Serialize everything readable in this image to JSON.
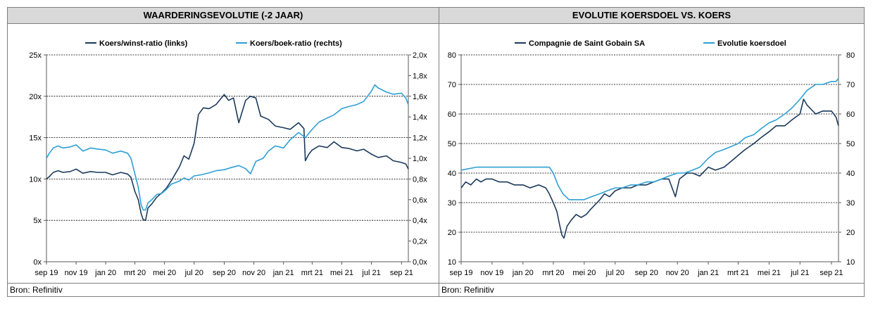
{
  "colors": {
    "dark": "#1b3a5c",
    "light": "#2e9fd6",
    "grid": "#000000",
    "header_bg": "#d9d9d9"
  },
  "panels": [
    {
      "title": "WAARDERINGSEVOLUTIE (-2 JAAR)",
      "source": "Bron: Refinitiv"
    },
    {
      "title": "EVOLUTIE KOERSDOEL VS. KOERS",
      "source": "Bron: Refinitiv"
    }
  ],
  "chart_data": [
    {
      "type": "line",
      "x_labels": [
        "sep 19",
        "nov 19",
        "jan 20",
        "mrt 20",
        "mei 20",
        "jul 20",
        "sep 20",
        "nov 20",
        "jan 21",
        "mrt 21",
        "mei 21",
        "jul 21",
        "sep 21"
      ],
      "y_left": {
        "ticks": [
          "0x",
          "5x",
          "10x",
          "15x",
          "20x",
          "25x"
        ],
        "lim": [
          0,
          25
        ],
        "gridlines": [
          5,
          10,
          15,
          20,
          25
        ]
      },
      "y_right": {
        "ticks": [
          "0,0x",
          "0,2x",
          "0,4x",
          "0,6x",
          "0,8x",
          "1,0x",
          "1,2x",
          "1,4x",
          "1,6x",
          "1,8x",
          "2,0x"
        ],
        "lim": [
          0,
          2
        ]
      },
      "legend_position": "top",
      "series": [
        {
          "name": "Koers/winst-ratio (links)",
          "axis": "left",
          "color": "dark",
          "x": [
            "2019-09-01",
            "2019-09-07",
            "2019-09-15",
            "2019-09-25",
            "2019-10-05",
            "2019-10-20",
            "2019-11-01",
            "2019-11-15",
            "2019-12-01",
            "2019-12-15",
            "2020-01-01",
            "2020-01-15",
            "2020-02-01",
            "2020-02-15",
            "2020-02-22",
            "2020-03-01",
            "2020-03-08",
            "2020-03-14",
            "2020-03-18",
            "2020-03-23",
            "2020-03-28",
            "2020-04-05",
            "2020-04-15",
            "2020-04-25",
            "2020-05-05",
            "2020-05-15",
            "2020-06-01",
            "2020-06-10",
            "2020-06-20",
            "2020-07-01",
            "2020-07-10",
            "2020-07-20",
            "2020-08-01",
            "2020-08-15",
            "2020-09-01",
            "2020-09-10",
            "2020-09-20",
            "2020-10-01",
            "2020-10-15",
            "2020-10-25",
            "2020-11-05",
            "2020-11-15",
            "2020-12-01",
            "2020-12-15",
            "2021-01-01",
            "2021-01-15",
            "2021-02-01",
            "2021-02-12",
            "2021-02-15",
            "2021-02-22",
            "2021-03-01",
            "2021-03-15",
            "2021-04-01",
            "2021-04-15",
            "2021-05-01",
            "2021-05-15",
            "2021-06-01",
            "2021-06-15",
            "2021-07-01",
            "2021-07-15",
            "2021-08-01",
            "2021-08-15",
            "2021-09-01",
            "2021-09-10",
            "2021-09-15"
          ],
          "y": [
            10.0,
            10.3,
            10.8,
            11.0,
            10.8,
            10.9,
            11.2,
            10.7,
            10.9,
            10.8,
            10.8,
            10.5,
            10.8,
            10.6,
            10.2,
            8.5,
            7.5,
            5.8,
            5.1,
            5.0,
            6.5,
            7.0,
            7.8,
            8.3,
            8.9,
            9.8,
            11.5,
            12.8,
            12.4,
            14.3,
            17.8,
            18.6,
            18.5,
            19.0,
            20.2,
            19.5,
            19.8,
            16.8,
            19.5,
            20.0,
            19.8,
            17.6,
            17.2,
            16.4,
            16.2,
            16.0,
            16.8,
            16.1,
            12.2,
            13.0,
            13.5,
            14.0,
            13.8,
            14.5,
            13.8,
            13.7,
            13.4,
            13.6,
            13.0,
            12.6,
            12.8,
            12.2,
            12.0,
            11.8,
            11.2
          ]
        },
        {
          "name": "Koers/boek-ratio (rechts)",
          "axis": "right",
          "color": "light",
          "x": [
            "2019-09-01",
            "2019-09-07",
            "2019-09-15",
            "2019-09-25",
            "2019-10-05",
            "2019-10-20",
            "2019-11-01",
            "2019-11-15",
            "2019-12-01",
            "2019-12-15",
            "2020-01-01",
            "2020-01-15",
            "2020-02-01",
            "2020-02-15",
            "2020-02-22",
            "2020-03-01",
            "2020-03-08",
            "2020-03-14",
            "2020-03-18",
            "2020-03-23",
            "2020-03-28",
            "2020-04-05",
            "2020-04-15",
            "2020-04-25",
            "2020-05-05",
            "2020-05-15",
            "2020-06-01",
            "2020-06-10",
            "2020-06-20",
            "2020-07-01",
            "2020-07-15",
            "2020-08-01",
            "2020-08-15",
            "2020-09-01",
            "2020-09-15",
            "2020-10-01",
            "2020-10-15",
            "2020-10-25",
            "2020-11-05",
            "2020-11-20",
            "2020-12-01",
            "2020-12-15",
            "2021-01-01",
            "2021-01-15",
            "2021-02-01",
            "2021-02-15",
            "2021-03-01",
            "2021-03-15",
            "2021-04-01",
            "2021-04-15",
            "2021-05-01",
            "2021-05-15",
            "2021-06-01",
            "2021-06-15",
            "2021-07-01",
            "2021-07-08",
            "2021-07-15",
            "2021-08-01",
            "2021-08-15",
            "2021-09-01",
            "2021-09-10",
            "2021-09-15"
          ],
          "y": [
            1.0,
            1.05,
            1.1,
            1.12,
            1.1,
            1.11,
            1.13,
            1.07,
            1.1,
            1.09,
            1.08,
            1.05,
            1.07,
            1.05,
            1.0,
            0.85,
            0.72,
            0.55,
            0.5,
            0.5,
            0.57,
            0.6,
            0.65,
            0.66,
            0.7,
            0.75,
            0.78,
            0.81,
            0.79,
            0.83,
            0.84,
            0.86,
            0.88,
            0.89,
            0.91,
            0.93,
            0.9,
            0.85,
            0.97,
            1.0,
            1.07,
            1.12,
            1.1,
            1.18,
            1.25,
            1.2,
            1.28,
            1.35,
            1.39,
            1.42,
            1.48,
            1.5,
            1.52,
            1.55,
            1.65,
            1.71,
            1.68,
            1.64,
            1.62,
            1.63,
            1.58,
            1.52
          ]
        }
      ]
    },
    {
      "type": "line",
      "x_labels": [
        "sep 19",
        "nov 19",
        "jan 20",
        "mrt 20",
        "mei 20",
        "jul 20",
        "sep 20",
        "nov 20",
        "jan 21",
        "mrt 21",
        "mei 21",
        "jul 21",
        "sep 21"
      ],
      "y_left": {
        "ticks": [
          "10",
          "20",
          "30",
          "40",
          "50",
          "60",
          "70",
          "80"
        ],
        "lim": [
          10,
          80
        ],
        "gridlines": [
          20,
          30,
          40,
          50,
          60,
          70,
          80
        ]
      },
      "y_right": {
        "ticks": [
          "10",
          "20",
          "30",
          "40",
          "50",
          "60",
          "70",
          "80"
        ],
        "lim": [
          10,
          80
        ]
      },
      "legend_position": "top",
      "series": [
        {
          "name": "Compagnie de Saint Gobain SA",
          "axis": "left",
          "color": "dark",
          "x": [
            "2019-09-01",
            "2019-09-10",
            "2019-09-20",
            "2019-10-01",
            "2019-10-10",
            "2019-10-20",
            "2019-11-01",
            "2019-11-15",
            "2019-12-01",
            "2019-12-15",
            "2020-01-01",
            "2020-01-15",
            "2020-02-01",
            "2020-02-15",
            "2020-02-22",
            "2020-03-01",
            "2020-03-08",
            "2020-03-14",
            "2020-03-18",
            "2020-03-22",
            "2020-03-28",
            "2020-04-05",
            "2020-04-15",
            "2020-04-25",
            "2020-05-05",
            "2020-05-15",
            "2020-06-01",
            "2020-06-10",
            "2020-06-20",
            "2020-07-01",
            "2020-07-15",
            "2020-08-01",
            "2020-08-15",
            "2020-09-01",
            "2020-09-15",
            "2020-10-01",
            "2020-10-15",
            "2020-10-28",
            "2020-11-05",
            "2020-11-20",
            "2020-12-01",
            "2020-12-15",
            "2021-01-01",
            "2021-01-15",
            "2021-02-01",
            "2021-02-15",
            "2021-03-01",
            "2021-03-15",
            "2021-04-01",
            "2021-04-15",
            "2021-05-01",
            "2021-05-15",
            "2021-06-01",
            "2021-06-15",
            "2021-07-01",
            "2021-07-08",
            "2021-07-15",
            "2021-08-01",
            "2021-08-15",
            "2021-09-01",
            "2021-09-10",
            "2021-09-15"
          ],
          "y": [
            35,
            37,
            36,
            38,
            37,
            38,
            38,
            37,
            37,
            36,
            36,
            35,
            36,
            35,
            33,
            30,
            27,
            22,
            19,
            18,
            22,
            24,
            26,
            25,
            26,
            28,
            31,
            33,
            32,
            34,
            35,
            35,
            36,
            36,
            37,
            38,
            38,
            32,
            38,
            40,
            40,
            39,
            42,
            41,
            42,
            44,
            46,
            48,
            50,
            52,
            54,
            56,
            56,
            58,
            60,
            65,
            63,
            60,
            61,
            61,
            59,
            56
          ]
        },
        {
          "name": "Evolutie koersdoel",
          "axis": "right",
          "color": "light",
          "x": [
            "2019-09-01",
            "2019-10-01",
            "2019-11-01",
            "2019-12-01",
            "2020-01-01",
            "2020-02-01",
            "2020-02-22",
            "2020-03-01",
            "2020-03-10",
            "2020-03-20",
            "2020-04-01",
            "2020-04-15",
            "2020-05-01",
            "2020-05-15",
            "2020-06-01",
            "2020-06-15",
            "2020-07-01",
            "2020-07-15",
            "2020-08-01",
            "2020-08-15",
            "2020-09-01",
            "2020-09-15",
            "2020-10-01",
            "2020-10-15",
            "2020-11-01",
            "2020-11-15",
            "2020-12-01",
            "2020-12-15",
            "2021-01-01",
            "2021-01-15",
            "2021-02-01",
            "2021-02-15",
            "2021-03-01",
            "2021-03-15",
            "2021-04-01",
            "2021-04-15",
            "2021-05-01",
            "2021-05-15",
            "2021-06-01",
            "2021-06-15",
            "2021-07-01",
            "2021-07-15",
            "2021-08-01",
            "2021-08-15",
            "2021-09-01",
            "2021-09-10",
            "2021-09-15"
          ],
          "y": [
            41,
            42,
            42,
            42,
            42,
            42,
            42,
            40,
            36,
            33,
            31,
            31,
            31,
            32,
            33,
            34,
            35,
            35,
            36,
            36,
            37,
            37,
            38,
            39,
            40,
            40,
            41,
            42,
            45,
            47,
            48,
            49,
            50,
            52,
            53,
            55,
            57,
            58,
            60,
            62,
            65,
            68,
            70,
            70,
            71,
            71,
            72
          ]
        }
      ]
    }
  ]
}
